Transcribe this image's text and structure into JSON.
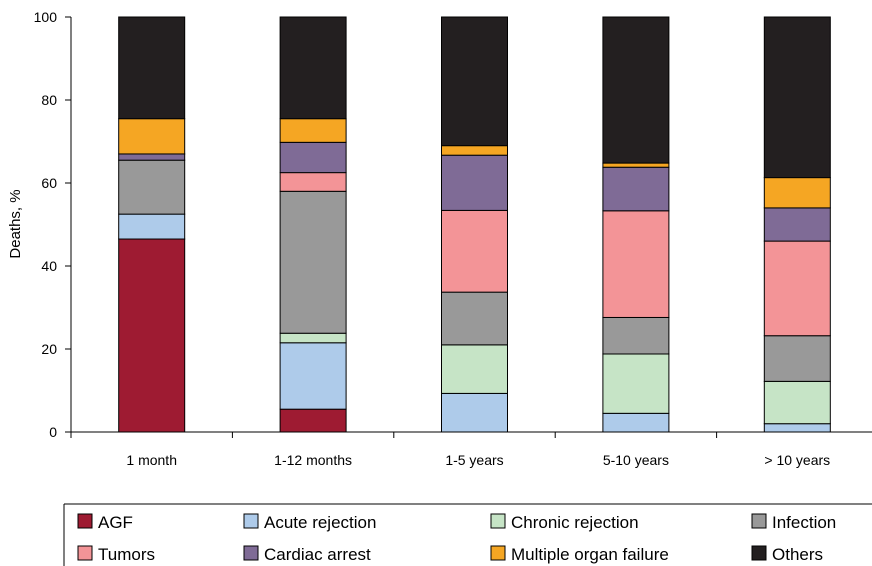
{
  "chart_data": {
    "type": "bar",
    "stacked": true,
    "categories": [
      "1 month",
      "1-12 months",
      "1-5 years",
      "5-10 years",
      "> 10 years"
    ],
    "ylabel": "Deaths, %",
    "xlabel": "",
    "ylim": [
      0,
      100
    ],
    "yticks": [
      0,
      20,
      40,
      60,
      80,
      100
    ],
    "grid": false,
    "legend_position": "bottom",
    "series": [
      {
        "name": "AGF",
        "color": "#9e1b32",
        "values": [
          46.5,
          5.5,
          0,
          0,
          0
        ]
      },
      {
        "name": "Acute rejection",
        "color": "#aecbea",
        "values": [
          6,
          16,
          9.3,
          4.5,
          2
        ]
      },
      {
        "name": "Chronic rejection",
        "color": "#c6e4c6",
        "values": [
          0,
          2.3,
          11.7,
          14.3,
          10.2
        ]
      },
      {
        "name": "Infection",
        "color": "#999999",
        "values": [
          13,
          34.2,
          12.7,
          8.8,
          11
        ]
      },
      {
        "name": "Tumors",
        "color": "#f39497",
        "values": [
          0,
          4.5,
          19.7,
          25.7,
          22.8
        ]
      },
      {
        "name": "Cardiac arrest",
        "color": "#7f6b96",
        "values": [
          1.5,
          7.3,
          13.3,
          10.5,
          8
        ]
      },
      {
        "name": "Multiple organ failure",
        "color": "#f5a623",
        "values": [
          8.5,
          5.7,
          2.3,
          1,
          7.3
        ]
      },
      {
        "name": "Others",
        "color": "#231f20",
        "values": [
          24.5,
          24.5,
          31,
          35.2,
          38.7
        ]
      }
    ]
  }
}
